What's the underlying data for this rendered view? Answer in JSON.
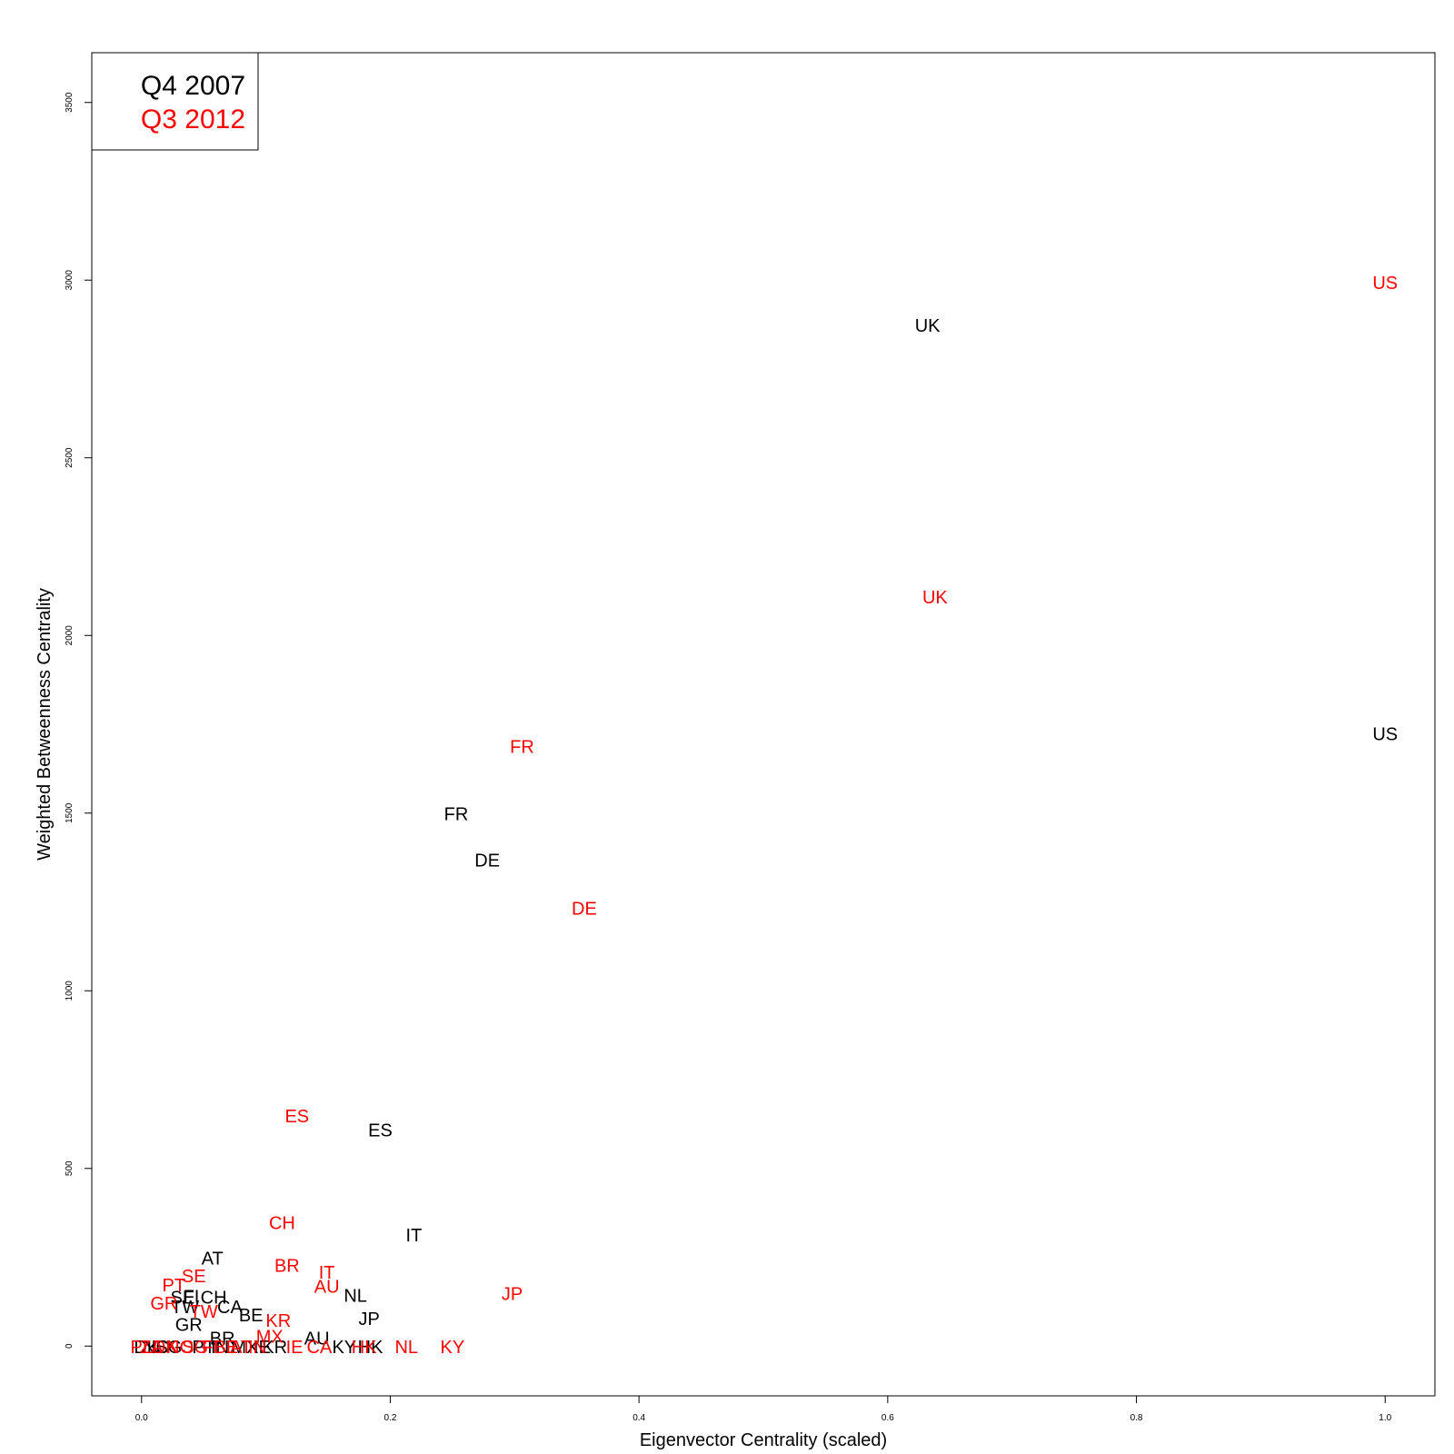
{
  "chart_data": {
    "type": "scatter",
    "xlabel": "Eigenvector Centrality (scaled)",
    "ylabel": "Weighted Betweenness Centrality",
    "xlim": [
      -0.04,
      1.04
    ],
    "ylim": [
      -140,
      3640
    ],
    "x_ticks": [
      0.0,
      0.2,
      0.4,
      0.6,
      0.8,
      1.0
    ],
    "x_tick_labels": [
      "0.0",
      "0.2",
      "0.4",
      "0.6",
      "0.8",
      "1.0"
    ],
    "y_ticks": [
      0,
      500,
      1000,
      1500,
      2000,
      2500,
      3000,
      3500
    ],
    "y_tick_labels": [
      "0",
      "500",
      "1000",
      "1500",
      "2000",
      "2500",
      "3000",
      "3500"
    ],
    "grid": false,
    "legend_position": "top-left",
    "marker": "text label",
    "series": [
      {
        "name": "Q4 2007",
        "color": "#000000",
        "points": [
          {
            "label": "US",
            "x": 1.0,
            "y": 1720
          },
          {
            "label": "UK",
            "x": 0.632,
            "y": 2870
          },
          {
            "label": "FR",
            "x": 0.253,
            "y": 1495
          },
          {
            "label": "DE",
            "x": 0.278,
            "y": 1365
          },
          {
            "label": "ES",
            "x": 0.192,
            "y": 605
          },
          {
            "label": "IT",
            "x": 0.219,
            "y": 310
          },
          {
            "label": "AT",
            "x": 0.057,
            "y": 245
          },
          {
            "label": "NL",
            "x": 0.172,
            "y": 140
          },
          {
            "label": "JP",
            "x": 0.183,
            "y": 75
          },
          {
            "label": "SE",
            "x": 0.033,
            "y": 135
          },
          {
            "label": "FI",
            "x": 0.04,
            "y": 138
          },
          {
            "label": "CH",
            "x": 0.058,
            "y": 135
          },
          {
            "label": "TW",
            "x": 0.035,
            "y": 108
          },
          {
            "label": "CA",
            "x": 0.071,
            "y": 108
          },
          {
            "label": "BE",
            "x": 0.088,
            "y": 85
          },
          {
            "label": "GR",
            "x": 0.038,
            "y": 58
          },
          {
            "label": "AU",
            "x": 0.141,
            "y": 20
          },
          {
            "label": "BR",
            "x": 0.065,
            "y": 20
          },
          {
            "label": "PT",
            "x": 0.05,
            "y": -5
          },
          {
            "label": "IN",
            "x": 0.063,
            "y": -5
          },
          {
            "label": "MX",
            "x": 0.083,
            "y": -5
          },
          {
            "label": "IE",
            "x": 0.097,
            "y": -5
          },
          {
            "label": "KR",
            "x": 0.107,
            "y": -5
          },
          {
            "label": "KY",
            "x": 0.163,
            "y": -5
          },
          {
            "label": "HK",
            "x": 0.184,
            "y": -5
          },
          {
            "label": "SG",
            "x": 0.022,
            "y": -5
          },
          {
            "label": "NO",
            "x": 0.012,
            "y": -5
          },
          {
            "label": "DK",
            "x": 0.004,
            "y": -5
          }
        ]
      },
      {
        "name": "Q3 2012",
        "color": "#ff0000",
        "points": [
          {
            "label": "US",
            "x": 1.0,
            "y": 2990
          },
          {
            "label": "UK",
            "x": 0.638,
            "y": 2105
          },
          {
            "label": "FR",
            "x": 0.306,
            "y": 1685
          },
          {
            "label": "DE",
            "x": 0.356,
            "y": 1230
          },
          {
            "label": "ES",
            "x": 0.125,
            "y": 645
          },
          {
            "label": "CH",
            "x": 0.113,
            "y": 345
          },
          {
            "label": "BR",
            "x": 0.117,
            "y": 225
          },
          {
            "label": "IT",
            "x": 0.149,
            "y": 205
          },
          {
            "label": "AU",
            "x": 0.149,
            "y": 165
          },
          {
            "label": "JP",
            "x": 0.298,
            "y": 145
          },
          {
            "label": "SE",
            "x": 0.042,
            "y": 195
          },
          {
            "label": "PT",
            "x": 0.026,
            "y": 170
          },
          {
            "label": "GR",
            "x": 0.018,
            "y": 118
          },
          {
            "label": "TW",
            "x": 0.05,
            "y": 95
          },
          {
            "label": "KR",
            "x": 0.11,
            "y": 70
          },
          {
            "label": "MX",
            "x": 0.103,
            "y": 25
          },
          {
            "label": "NL",
            "x": 0.213,
            "y": -5
          },
          {
            "label": "KY",
            "x": 0.25,
            "y": -5
          },
          {
            "label": "HK",
            "x": 0.179,
            "y": -5
          },
          {
            "label": "CA",
            "x": 0.143,
            "y": -5
          },
          {
            "label": "IE",
            "x": 0.123,
            "y": -5
          },
          {
            "label": "IN",
            "x": 0.093,
            "y": -5
          },
          {
            "label": "AT",
            "x": 0.08,
            "y": -5
          },
          {
            "label": "BE",
            "x": 0.068,
            "y": -5
          },
          {
            "label": "FI",
            "x": 0.055,
            "y": -5
          },
          {
            "label": "SG",
            "x": 0.043,
            "y": -5
          },
          {
            "label": "NO",
            "x": 0.031,
            "y": -5
          },
          {
            "label": "DK",
            "x": 0.019,
            "y": -5
          },
          {
            "label": "ZA",
            "x": 0.008,
            "y": -5
          },
          {
            "label": "PL",
            "x": 0.0,
            "y": -5
          }
        ]
      }
    ]
  }
}
